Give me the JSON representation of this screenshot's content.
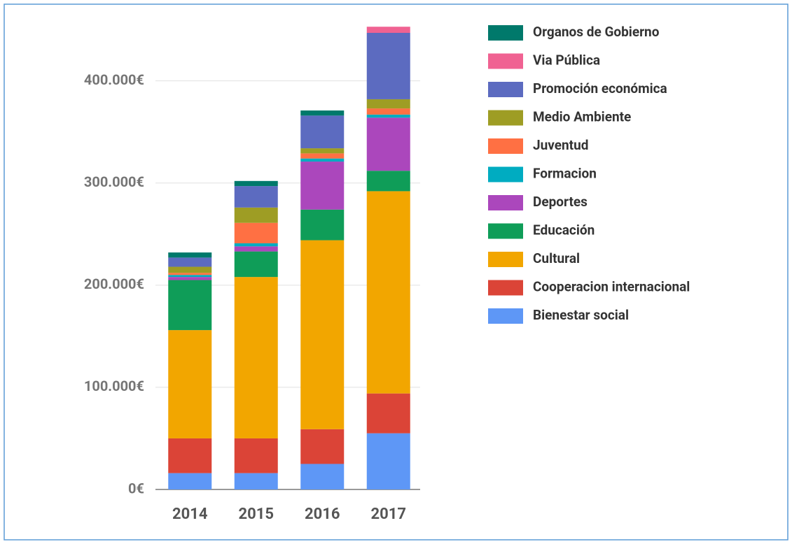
{
  "chart_data": {
    "type": "stacked_bar",
    "categories": [
      "2014",
      "2015",
      "2016",
      "2017"
    ],
    "series": [
      {
        "name": "Bienestar social",
        "color": "#5e97f6",
        "values": [
          16000,
          16000,
          25000,
          55000
        ]
      },
      {
        "name": "Cooperacion internacional",
        "color": "#db4437",
        "values": [
          34000,
          34000,
          34000,
          39000
        ]
      },
      {
        "name": "Cultural",
        "color": "#f2a600",
        "values": [
          106000,
          158000,
          185000,
          198000
        ]
      },
      {
        "name": "Educación",
        "color": "#0f9d58",
        "values": [
          49000,
          25000,
          30000,
          20000
        ]
      },
      {
        "name": "Deportes",
        "color": "#ab47bc",
        "values": [
          3000,
          5000,
          47000,
          52000
        ]
      },
      {
        "name": "Formacion",
        "color": "#00acc1",
        "values": [
          2000,
          3000,
          3000,
          3000
        ]
      },
      {
        "name": "Juventud",
        "color": "#ff7043",
        "values": [
          2000,
          20000,
          5000,
          6000
        ]
      },
      {
        "name": "Medio Ambiente",
        "color": "#9e9d24",
        "values": [
          6000,
          15000,
          5000,
          9000
        ]
      },
      {
        "name": "Promoción económica",
        "color": "#5c6bc0",
        "values": [
          9000,
          21000,
          32000,
          65000
        ]
      },
      {
        "name": "Via Pública",
        "color": "#f06292",
        "values": [
          0,
          0,
          0,
          6000
        ]
      },
      {
        "name": "Organos de Gobierno",
        "color": "#00796b",
        "values": [
          5000,
          5000,
          5000,
          0
        ]
      }
    ],
    "ylim": [
      0,
      460000
    ],
    "yticks": [
      {
        "value": 0,
        "label": "0€"
      },
      {
        "value": 100000,
        "label": "100.000€"
      },
      {
        "value": 200000,
        "label": "200.000€"
      },
      {
        "value": 300000,
        "label": "300.000€"
      },
      {
        "value": 400000,
        "label": "400.000€"
      }
    ],
    "grid": true,
    "legend": "right"
  }
}
